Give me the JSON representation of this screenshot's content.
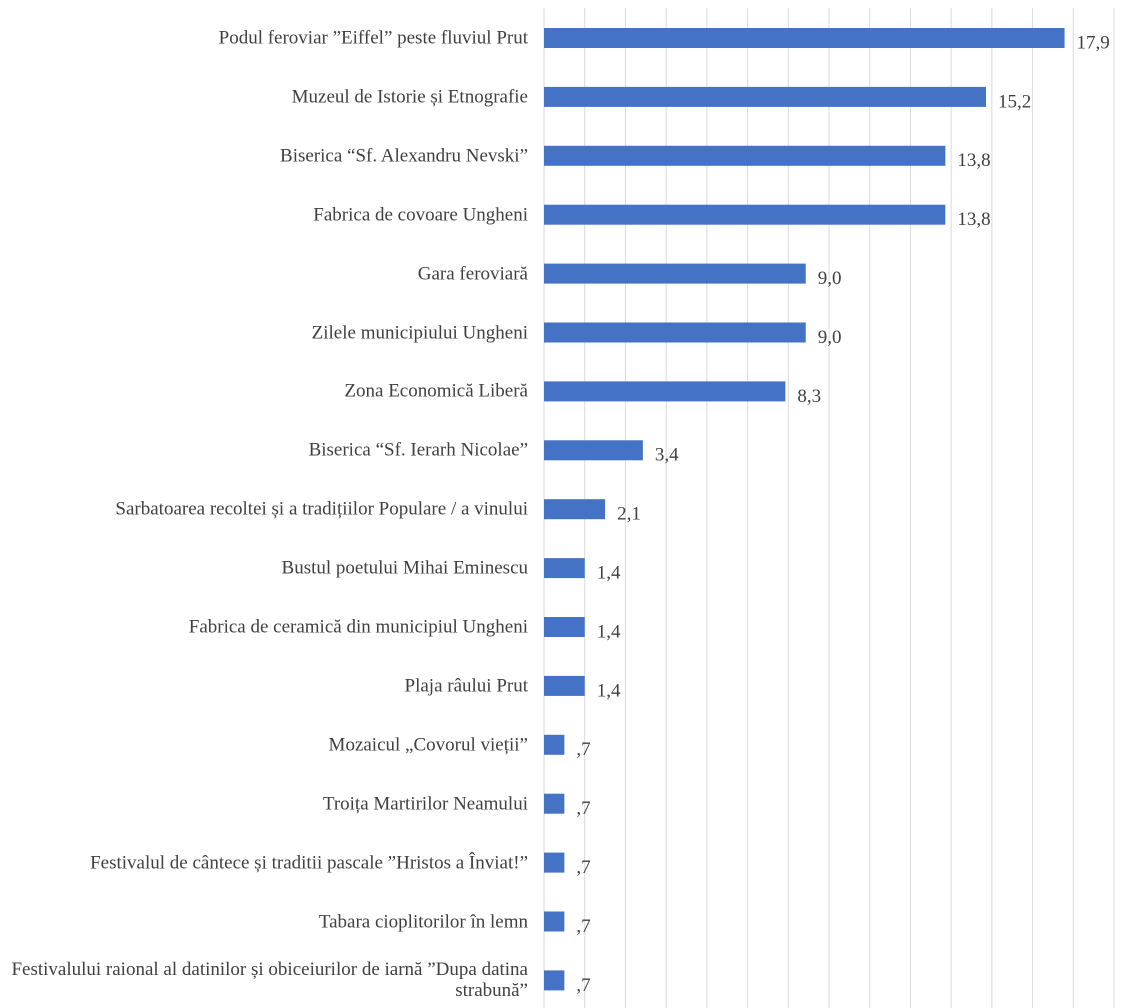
{
  "chart_data": {
    "type": "barh",
    "categories": [
      "Podul feroviar ”Eiffel” peste fluviul Prut",
      "Muzeul de Istorie și Etnografie",
      "Biserica “Sf. Alexandru Nevski”",
      "Fabrica de covoare Ungheni",
      "Gara feroviară",
      "Zilele municipiului Ungheni",
      "Zona Economică Liberă",
      "Biserica “Sf. Ierarh Nicolae”",
      "Sarbatoarea recoltei și a tradițiilor Populare / a vinului",
      "Bustul poetului Mihai Eminescu",
      "Fabrica de ceramică din municipiul Ungheni",
      "Plaja râului Prut",
      "Mozaicul „Covorul vieții”",
      "Troița Martirilor Neamului",
      "Festivalul de cântece și traditii pascale ”Hristos a Înviat!”",
      "Tabara cioplitorilor în lemn",
      "Festivalului raional al datinilor și obiceiurilor de iarnă ”Dupa datina strabună”"
    ],
    "values": [
      17.9,
      15.2,
      13.8,
      13.8,
      9.0,
      9.0,
      8.3,
      3.4,
      2.1,
      1.4,
      1.4,
      1.4,
      0.7,
      0.7,
      0.7,
      0.7,
      0.7
    ],
    "value_labels": [
      "17,9",
      "15,2",
      "13,8",
      "13,8",
      "9,0",
      "9,0",
      "8,3",
      "3,4",
      "2,1",
      "1,4",
      "1,4",
      "1,4",
      ",7",
      ",7",
      ",7",
      ",7",
      ",7"
    ],
    "color": "#4472c4",
    "xlim": [
      0,
      19.6
    ],
    "xticks": [
      0,
      1.4,
      2.8,
      4.2,
      5.6,
      7,
      8.4,
      9.8,
      11.2,
      12.6,
      14,
      15.4,
      16.8,
      18.2,
      19.6
    ],
    "grid": true
  }
}
